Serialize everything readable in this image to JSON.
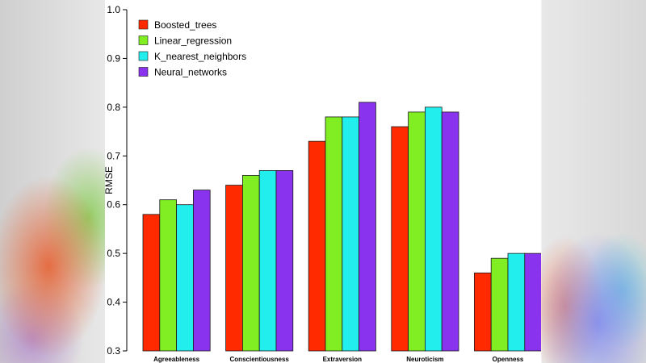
{
  "chart_data": {
    "type": "bar",
    "ylabel": "RMSE",
    "xlabel": "",
    "ylim": [
      0.3,
      1.0
    ],
    "yticks": [
      "0.3",
      "0.4",
      "0.5",
      "0.6",
      "0.7",
      "0.8",
      "0.9",
      "1.0"
    ],
    "categories": [
      "Agreeableness",
      "Conscientiousness",
      "Extraversion",
      "Neuroticism",
      "Openness"
    ],
    "series": [
      {
        "name": "Boosted_trees",
        "color": "#ff2a00",
        "values": [
          0.58,
          0.64,
          0.73,
          0.76,
          0.46
        ]
      },
      {
        "name": "Linear_regression",
        "color": "#80ee22",
        "values": [
          0.61,
          0.66,
          0.78,
          0.79,
          0.49
        ]
      },
      {
        "name": "K_nearest_neighbors",
        "color": "#22eeee",
        "values": [
          0.6,
          0.67,
          0.78,
          0.8,
          0.5
        ]
      },
      {
        "name": "Neural_networks",
        "color": "#8a33ee",
        "values": [
          0.63,
          0.67,
          0.81,
          0.79,
          0.5
        ]
      }
    ],
    "legend": "top-left",
    "grid": false
  }
}
